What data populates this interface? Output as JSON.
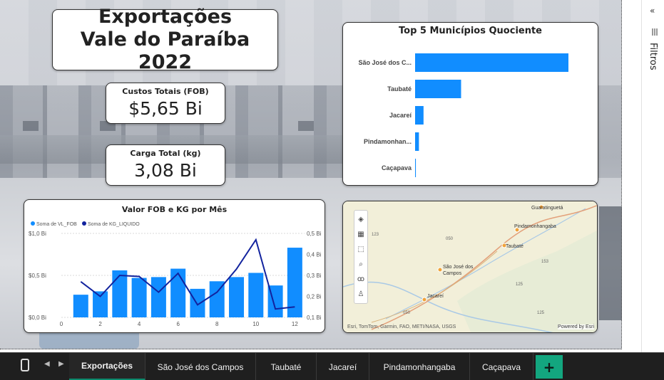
{
  "report": {
    "title": "Exportações Vale do Paraíba 2022",
    "kpis": [
      {
        "label": "Custos Totais (FOB)",
        "value": "$5,65 Bi"
      },
      {
        "label": "Carga Total (kg)",
        "value": "3,08 Bi"
      }
    ]
  },
  "filters_pane": {
    "label": "Filtros",
    "collapse_glyph": "«"
  },
  "pages": {
    "active": "Exportações",
    "tabs": [
      "Exportações",
      "São José dos Campos",
      "Taubaté",
      "Jacareí",
      "Pindamonhangaba",
      "Caçapava"
    ],
    "add_label": "+"
  },
  "colors": {
    "bar_blue": "#118dff",
    "line_navy": "#12239e",
    "accent_green": "#13a67f"
  },
  "chart_data": [
    {
      "type": "bar",
      "orientation": "horizontal",
      "title": "Top 5 Municípios Quociente",
      "categories": [
        "São José dos C...",
        "Taubaté",
        "Jacareí",
        "Pindamonhan...",
        "Caçapava"
      ],
      "values": [
        100,
        30,
        5.5,
        2.5,
        0.5
      ],
      "xlim": [
        0,
        100
      ]
    },
    {
      "type": "bar",
      "title": "Valor FOB e KG por Mês",
      "legend_position": "top-left",
      "x": [
        1,
        2,
        3,
        4,
        5,
        6,
        7,
        8,
        9,
        10,
        11,
        12
      ],
      "x_ticks": [
        "0",
        "2",
        "4",
        "6",
        "8",
        "10",
        "12"
      ],
      "series": [
        {
          "name": "Soma de VL_FOB",
          "type": "bar",
          "axis": "left",
          "values": [
            0.27,
            0.31,
            0.56,
            0.47,
            0.48,
            0.58,
            0.34,
            0.43,
            0.48,
            0.53,
            0.38,
            0.83
          ]
        },
        {
          "name": "Soma de KG_LIQUIDO",
          "type": "line",
          "axis": "right",
          "values": [
            0.27,
            0.2,
            0.3,
            0.295,
            0.22,
            0.31,
            0.16,
            0.22,
            0.33,
            0.47,
            0.14,
            0.15
          ]
        }
      ],
      "y_left_ticks": [
        "$0,0 Bi",
        "$0,5 Bi",
        "$1,0 Bi"
      ],
      "y_left_lim": [
        0,
        1.0
      ],
      "y_right_ticks": [
        "0,1 Bi",
        "0,2 Bi",
        "0,3 Bi",
        "0,4 Bi",
        "0,5 Bi"
      ],
      "y_right_lim": [
        0.1,
        0.5
      ],
      "grid": true
    }
  ],
  "map": {
    "places": [
      {
        "name": "Guaratinguetá"
      },
      {
        "name": "Pindamonhangaba"
      },
      {
        "name": "Taubaté"
      },
      {
        "name": "São José dos Campos"
      },
      {
        "name": "Jacareí"
      }
    ],
    "road_labels": [
      "050",
      "153",
      "125",
      "125",
      "050",
      "123"
    ],
    "tools": [
      "layers-icon",
      "qr-select-icon",
      "rect-select-icon",
      "search-icon",
      "lasso-icon",
      "person-icon"
    ],
    "attribution": "Esri, TomTom, Garmin, FAO, METI/NASA, USGS",
    "powered_by": "Powered by Esri"
  }
}
